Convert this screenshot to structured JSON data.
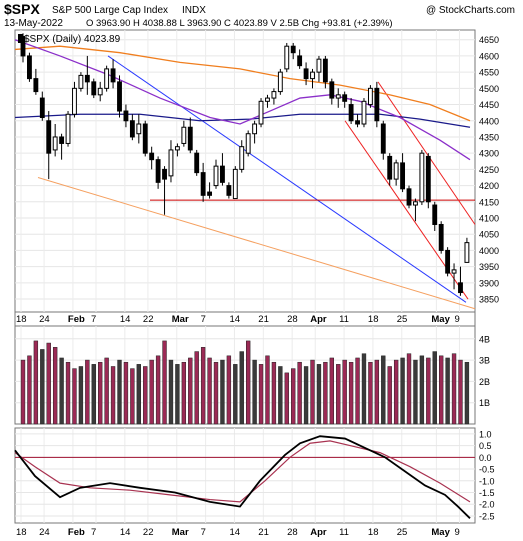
{
  "header": {
    "symbol": "$SPX",
    "name": "S&P 500 Large Cap Index",
    "exchange": "INDX",
    "watermark": "@ StockCharts.com",
    "date": "13-May-2022",
    "ohlc": "O 3963.90  H 4038.88  L 3963.90  C 4023.89  V 2.5B  Chg +93.81 (+2.39%)",
    "legend": "$SPX (Daily) 4023.89"
  },
  "colors": {
    "up": "#000000",
    "down": "#000000",
    "vol_up": "#9b2a55",
    "vol_down": "#3a3a3a",
    "ma50": "#8b2fc9",
    "ma200": "#1a1a8a",
    "ma_orange": "#f07e1e",
    "ppo_signal": "#a83250",
    "zero_line": "#a01030",
    "trend_blue": "#2a3aff",
    "trend_red": "#ee2222",
    "trend_orange": "#f5a060",
    "support_red": "#cc0000"
  },
  "chart_data": {
    "type": "candlestick",
    "x_labels": [
      "18",
      "24",
      "Feb",
      "7",
      "14",
      "22",
      "Mar",
      "7",
      "14",
      "21",
      "28",
      "Apr",
      "11",
      "18",
      "25",
      "May",
      "9"
    ],
    "price_axis": {
      "ticks": [
        3850,
        3900,
        3950,
        4000,
        4050,
        4100,
        4150,
        4200,
        4250,
        4300,
        4350,
        4400,
        4450,
        4500,
        4550,
        4600,
        4650
      ],
      "ylim": [
        3810,
        4680
      ]
    },
    "candles": [
      [
        4660,
        4670,
        4580,
        4600
      ],
      [
        4600,
        4610,
        4520,
        4530
      ],
      [
        4530,
        4560,
        4480,
        4490
      ],
      [
        4470,
        4490,
        4400,
        4410
      ],
      [
        4400,
        4430,
        4220,
        4300
      ],
      [
        4310,
        4390,
        4290,
        4350
      ],
      [
        4350,
        4360,
        4280,
        4330
      ],
      [
        4330,
        4430,
        4320,
        4420
      ],
      [
        4420,
        4520,
        4410,
        4500
      ],
      [
        4500,
        4550,
        4490,
        4540
      ],
      [
        4540,
        4600,
        4480,
        4520
      ],
      [
        4520,
        4530,
        4470,
        4480
      ],
      [
        4480,
        4520,
        4460,
        4500
      ],
      [
        4500,
        4570,
        4490,
        4560
      ],
      [
        4560,
        4590,
        4500,
        4520
      ],
      [
        4520,
        4540,
        4410,
        4430
      ],
      [
        4430,
        4450,
        4380,
        4400
      ],
      [
        4400,
        4420,
        4340,
        4350
      ],
      [
        4360,
        4420,
        4330,
        4390
      ],
      [
        4390,
        4400,
        4290,
        4300
      ],
      [
        4300,
        4320,
        4250,
        4280
      ],
      [
        4280,
        4290,
        4190,
        4210
      ],
      [
        4250,
        4260,
        4110,
        4220
      ],
      [
        4230,
        4340,
        4210,
        4310
      ],
      [
        4310,
        4330,
        4290,
        4320
      ],
      [
        4330,
        4400,
        4320,
        4380
      ],
      [
        4380,
        4410,
        4300,
        4310
      ],
      [
        4300,
        4310,
        4230,
        4240
      ],
      [
        4240,
        4270,
        4150,
        4170
      ],
      [
        4180,
        4210,
        4160,
        4170
      ],
      [
        4200,
        4280,
        4190,
        4260
      ],
      [
        4260,
        4300,
        4200,
        4210
      ],
      [
        4200,
        4210,
        4160,
        4170
      ],
      [
        4160,
        4260,
        4160,
        4250
      ],
      [
        4250,
        4340,
        4240,
        4320
      ],
      [
        4300,
        4370,
        4290,
        4360
      ],
      [
        4360,
        4400,
        4330,
        4390
      ],
      [
        4390,
        4470,
        4380,
        4460
      ],
      [
        4460,
        4480,
        4440,
        4470
      ],
      [
        4470,
        4500,
        4450,
        4490
      ],
      [
        4490,
        4560,
        4480,
        4550
      ],
      [
        4560,
        4640,
        4550,
        4630
      ],
      [
        4630,
        4640,
        4590,
        4610
      ],
      [
        4600,
        4620,
        4560,
        4570
      ],
      [
        4560,
        4580,
        4510,
        4530
      ],
      [
        4530,
        4560,
        4500,
        4550
      ],
      [
        4550,
        4600,
        4520,
        4590
      ],
      [
        4590,
        4600,
        4500,
        4520
      ],
      [
        4520,
        4530,
        4450,
        4470
      ],
      [
        4470,
        4500,
        4440,
        4480
      ],
      [
        4480,
        4490,
        4440,
        4460
      ],
      [
        4450,
        4470,
        4390,
        4400
      ],
      [
        4400,
        4420,
        4380,
        4390
      ],
      [
        4390,
        4470,
        4380,
        4460
      ],
      [
        4450,
        4510,
        4440,
        4500
      ],
      [
        4500,
        4520,
        4380,
        4400
      ],
      [
        4390,
        4400,
        4280,
        4300
      ],
      [
        4290,
        4300,
        4200,
        4220
      ],
      [
        4220,
        4280,
        4200,
        4270
      ],
      [
        4270,
        4300,
        4180,
        4190
      ],
      [
        4190,
        4200,
        4130,
        4140
      ],
      [
        4140,
        4160,
        4090,
        4150
      ],
      [
        4150,
        4310,
        4140,
        4300
      ],
      [
        4290,
        4300,
        4130,
        4150
      ],
      [
        4140,
        4150,
        4060,
        4080
      ],
      [
        4080,
        4090,
        3990,
        4000
      ],
      [
        4000,
        4010,
        3920,
        3930
      ],
      [
        3930,
        3960,
        3880,
        3940
      ],
      [
        3900,
        3950,
        3860,
        3870
      ],
      [
        3963,
        4039,
        3963,
        4024
      ]
    ],
    "volume_axis": {
      "ticks": [
        "4B",
        "3B",
        "2B",
        "1B"
      ],
      "ylim": [
        0,
        4.6
      ]
    },
    "volume": [
      [
        3.0,
        1
      ],
      [
        3.2,
        1
      ],
      [
        3.9,
        1
      ],
      [
        3.5,
        0
      ],
      [
        3.8,
        1
      ],
      [
        3.6,
        1
      ],
      [
        3.1,
        0
      ],
      [
        2.9,
        1
      ],
      [
        2.6,
        1
      ],
      [
        2.7,
        0
      ],
      [
        3.0,
        1
      ],
      [
        2.8,
        0
      ],
      [
        2.9,
        1
      ],
      [
        3.1,
        1
      ],
      [
        2.7,
        1
      ],
      [
        3.0,
        0
      ],
      [
        2.9,
        1
      ],
      [
        2.6,
        1
      ],
      [
        2.8,
        0
      ],
      [
        2.7,
        1
      ],
      [
        3.0,
        1
      ],
      [
        3.2,
        1
      ],
      [
        3.9,
        1
      ],
      [
        3.0,
        0
      ],
      [
        2.8,
        0
      ],
      [
        2.9,
        1
      ],
      [
        3.1,
        1
      ],
      [
        3.4,
        1
      ],
      [
        3.6,
        1
      ],
      [
        3.1,
        1
      ],
      [
        2.9,
        1
      ],
      [
        3.0,
        0
      ],
      [
        3.2,
        1
      ],
      [
        2.8,
        0
      ],
      [
        3.4,
        0
      ],
      [
        3.9,
        1
      ],
      [
        3.0,
        0
      ],
      [
        2.8,
        1
      ],
      [
        3.2,
        1
      ],
      [
        2.9,
        1
      ],
      [
        2.7,
        0
      ],
      [
        2.4,
        1
      ],
      [
        2.6,
        1
      ],
      [
        2.9,
        1
      ],
      [
        2.7,
        0
      ],
      [
        3.0,
        1
      ],
      [
        2.8,
        0
      ],
      [
        2.9,
        1
      ],
      [
        3.1,
        1
      ],
      [
        2.8,
        1
      ],
      [
        3.0,
        1
      ],
      [
        2.9,
        1
      ],
      [
        3.1,
        1
      ],
      [
        3.3,
        0
      ],
      [
        2.9,
        1
      ],
      [
        3.0,
        1
      ],
      [
        3.2,
        0
      ],
      [
        2.7,
        1
      ],
      [
        3.0,
        1
      ],
      [
        3.1,
        0
      ],
      [
        3.3,
        1
      ],
      [
        3.0,
        0
      ],
      [
        3.2,
        0
      ],
      [
        3.1,
        1
      ],
      [
        3.4,
        0
      ],
      [
        3.2,
        1
      ],
      [
        3.1,
        0
      ],
      [
        3.3,
        1
      ],
      [
        3.0,
        1
      ],
      [
        2.9,
        0
      ]
    ],
    "ppo_axis": {
      "ticks": [
        1.0,
        0.5,
        0.0,
        -0.5,
        -1.0,
        -1.5,
        -2.0,
        -2.5
      ],
      "ylim": [
        -2.8,
        1.25
      ]
    }
  }
}
